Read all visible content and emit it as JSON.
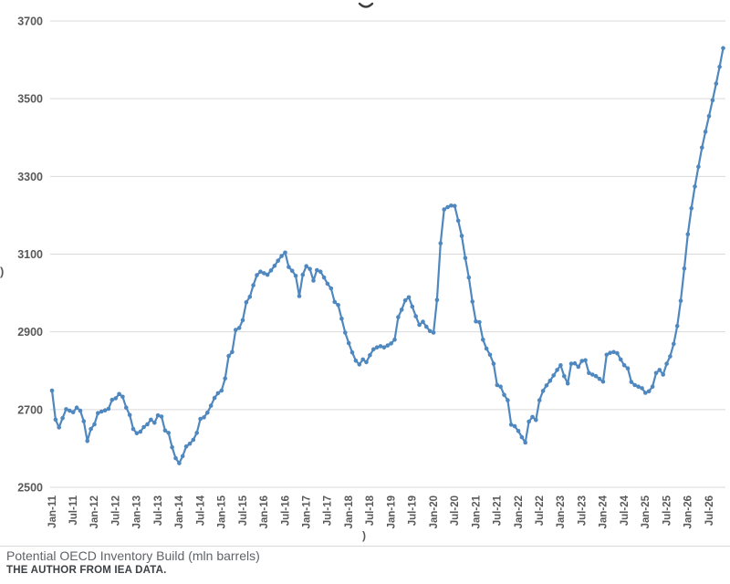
{
  "page": {
    "background": "#ffffff"
  },
  "fragments": {
    "cropped_title_fragment": "⌣",
    "cropped_y_axis_title_fragment": ")",
    "cropped_x_axis_fragment": ")"
  },
  "caption": {
    "title": "Potential OECD Inventory Build (mln barrels)",
    "source": "THE AUTHOR FROM IEA DATA."
  },
  "chart_data": {
    "type": "line",
    "title": "",
    "legend": "none",
    "grid": "horizontal",
    "colors": {
      "line": "#4f87bf",
      "marker": "#4f87bf",
      "gridline": "#d9d9d9",
      "axis_label": "#595959"
    },
    "xlabel": "",
    "ylabel": "",
    "ylim": [
      2500,
      3700
    ],
    "y_ticks": [
      2500,
      2700,
      2900,
      3100,
      3300,
      3500,
      3700
    ],
    "x_tick_interval_months": 6,
    "x_tick_labels": [
      "Jan-11",
      "Jul-11",
      "Jan-12",
      "Jul-12",
      "Jan-13",
      "Jul-13",
      "Jan-14",
      "Jul-14",
      "Jan-15",
      "Jul-15",
      "Jan-16",
      "Jul-16",
      "Jan-17",
      "Jul-17",
      "Jan-18",
      "Jul-18",
      "Jan-19",
      "Jul-19",
      "Jan-20",
      "Jul-20",
      "Jan-21",
      "Jul-21",
      "Jan-22",
      "Jul-22",
      "Jan-23",
      "Jul-23",
      "Jan-24",
      "Jul-24",
      "Jan-25",
      "Jul-25",
      "Jan-26",
      "Jul-26"
    ],
    "series": [
      {
        "name": "Potential OECD Inventory Build (mln barrels)",
        "start_month": "Jan-2011",
        "frequency": "monthly",
        "values": [
          2749,
          2674,
          2654,
          2678,
          2701,
          2697,
          2693,
          2705,
          2697,
          2670,
          2619,
          2650,
          2662,
          2691,
          2695,
          2698,
          2702,
          2725,
          2729,
          2740,
          2733,
          2705,
          2686,
          2650,
          2639,
          2643,
          2655,
          2662,
          2674,
          2666,
          2685,
          2682,
          2646,
          2640,
          2603,
          2575,
          2562,
          2580,
          2605,
          2612,
          2622,
          2640,
          2676,
          2680,
          2692,
          2710,
          2730,
          2742,
          2749,
          2780,
          2838,
          2848,
          2905,
          2910,
          2930,
          2976,
          2990,
          3020,
          3046,
          3055,
          3051,
          3047,
          3058,
          3070,
          3083,
          3095,
          3104,
          3067,
          3057,
          3044,
          2992,
          3047,
          3069,
          3062,
          3032,
          3059,
          3055,
          3040,
          3024,
          3012,
          2977,
          2969,
          2934,
          2898,
          2871,
          2847,
          2826,
          2816,
          2829,
          2822,
          2840,
          2855,
          2860,
          2863,
          2860,
          2865,
          2870,
          2880,
          2938,
          2957,
          2981,
          2989,
          2965,
          2940,
          2918,
          2926,
          2913,
          2902,
          2898,
          2982,
          3128,
          3215,
          3221,
          3225,
          3224,
          3186,
          3147,
          3090,
          3040,
          2978,
          2927,
          2925,
          2880,
          2857,
          2841,
          2818,
          2763,
          2759,
          2738,
          2724,
          2661,
          2657,
          2645,
          2629,
          2615,
          2669,
          2681,
          2673,
          2724,
          2748,
          2762,
          2774,
          2788,
          2802,
          2814,
          2786,
          2767,
          2818,
          2819,
          2810,
          2825,
          2827,
          2794,
          2790,
          2786,
          2779,
          2772,
          2841,
          2846,
          2848,
          2845,
          2829,
          2814,
          2806,
          2771,
          2763,
          2759,
          2755,
          2743,
          2747,
          2759,
          2794,
          2802,
          2790,
          2818,
          2837,
          2869,
          2915,
          2980,
          3063,
          3151,
          3218,
          3274,
          3325,
          3374,
          3415,
          3455,
          3496,
          3539,
          3582,
          3630
        ]
      }
    ]
  }
}
